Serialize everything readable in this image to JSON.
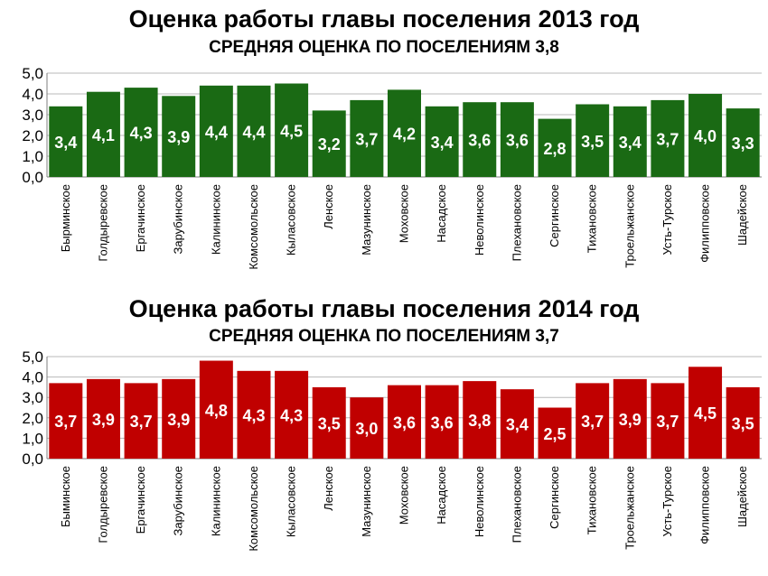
{
  "colors": {
    "bar_2013": "#1a6a14",
    "bar_2014": "#c00000",
    "grid": "#b8b8b8",
    "axis": "#7f7f7f"
  },
  "chart_data": [
    {
      "type": "bar",
      "title": "Оценка работы главы поселения 2013 год",
      "subtitle": "СРЕДНЯЯ ОЦЕНКА ПО ПОСЕЛЕНИЯМ 3,8",
      "xlabel": "",
      "ylabel": "",
      "ylim": [
        0,
        5
      ],
      "yticks": [
        "0,0",
        "1,0",
        "2,0",
        "3,0",
        "4,0",
        "5,0"
      ],
      "grid": true,
      "categories": [
        "Бырминское",
        "Голдыревское",
        "Ергачинское",
        "Зарубинское",
        "Калининское",
        "Комсомольское",
        "Кыласовское",
        "Ленское",
        "Мазунинское",
        "Моховское",
        "Насадское",
        "Неволинское",
        "Плехановское",
        "Сергинское",
        "Тихановское",
        "Троельжанское",
        "Усть-Турское",
        "Филипповское",
        "Шадейское"
      ],
      "values": [
        3.4,
        4.1,
        4.3,
        3.9,
        4.4,
        4.4,
        4.5,
        3.2,
        3.7,
        4.2,
        3.4,
        3.6,
        3.6,
        2.8,
        3.5,
        3.4,
        3.7,
        4.0,
        3.3
      ],
      "data_labels": [
        "3,4",
        "4,1",
        "4,3",
        "3,9",
        "4,4",
        "4,4",
        "4,5",
        "3,2",
        "3,7",
        "4,2",
        "3,4",
        "3,6",
        "3,6",
        "2,8",
        "3,5",
        "3,4",
        "3,7",
        "4,0",
        "3,3"
      ]
    },
    {
      "type": "bar",
      "title": "Оценка работы главы поселения 2014 год",
      "subtitle": "СРЕДНЯЯ ОЦЕНКА ПО ПОСЕЛЕНИЯМ 3,7",
      "xlabel": "",
      "ylabel": "",
      "ylim": [
        0,
        5
      ],
      "yticks": [
        "0,0",
        "1,0",
        "2,0",
        "3,0",
        "4,0",
        "5,0"
      ],
      "grid": true,
      "categories": [
        "Быминское",
        "Голдыревское",
        "Ергачинское",
        "Зарубинское",
        "Калининское",
        "Комсомольское",
        "Кыласовское",
        "Ленское",
        "Мазунинское",
        "Моховское",
        "Насадское",
        "Неволинское",
        "Плехановское",
        "Сергинское",
        "Тихановское",
        "Троельжанское",
        "Усть-Турское",
        "Филипповское",
        "Шадейское"
      ],
      "values": [
        3.7,
        3.9,
        3.7,
        3.9,
        4.8,
        4.3,
        4.3,
        3.5,
        3.0,
        3.6,
        3.6,
        3.8,
        3.4,
        2.5,
        3.7,
        3.9,
        3.7,
        4.5,
        3.5
      ],
      "data_labels": [
        "3,7",
        "3,9",
        "3,7",
        "3,9",
        "4,8",
        "4,3",
        "4,3",
        "3,5",
        "3,0",
        "3,6",
        "3,6",
        "3,8",
        "3,4",
        "2,5",
        "3,7",
        "3,9",
        "3,7",
        "4,5",
        "3,5"
      ]
    }
  ]
}
